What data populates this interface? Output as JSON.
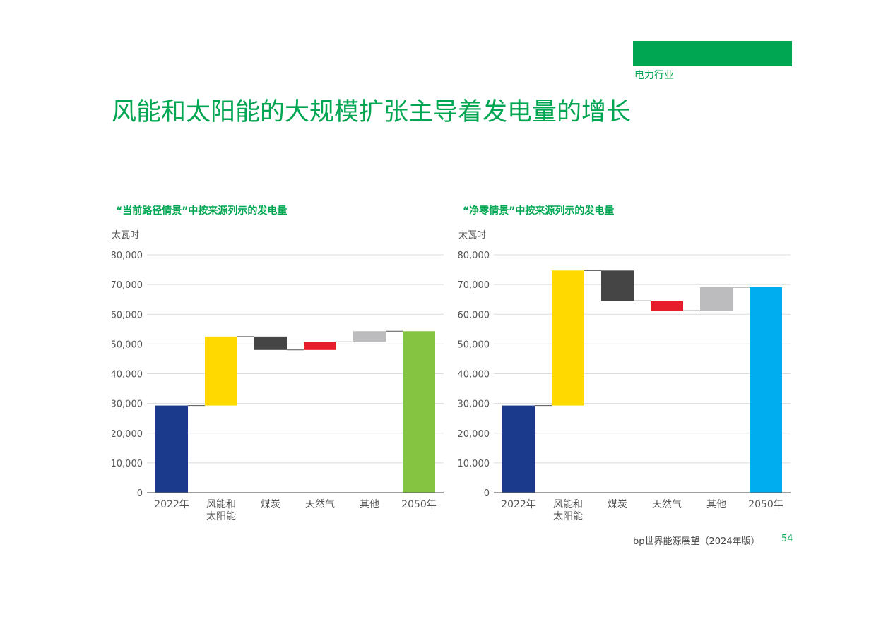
{
  "header": {
    "section_label": "电力行业",
    "title": "风能和太阳能的大规模扩张主导着发电量的增长",
    "accent_color": "#00a651"
  },
  "footer": {
    "source": "bp世界能源展望（2024年版）",
    "page_number": "54"
  },
  "chart_data": [
    {
      "type": "bar",
      "subtype": "waterfall",
      "title": "“当前路径情景”中按来源列示的发电量",
      "ylabel": "太瓦时",
      "ylim": [
        0,
        80000
      ],
      "yticks": [
        "0",
        "10,000",
        "20,000",
        "30,000",
        "40,000",
        "50,000",
        "60,000",
        "70,000",
        "80,000"
      ],
      "categories": [
        [
          "2022年"
        ],
        [
          "风能和",
          "太阳能"
        ],
        [
          "煤炭"
        ],
        [
          "天然气"
        ],
        [
          "其他"
        ],
        [
          "2050年"
        ]
      ],
      "bars": [
        {
          "start": 0,
          "end": 29300,
          "color": "#1b3a8c"
        },
        {
          "start": 29300,
          "end": 52500,
          "color": "#ffd900"
        },
        {
          "start": 52500,
          "end": 48000,
          "color": "#454545"
        },
        {
          "start": 48000,
          "end": 50700,
          "color": "#e61e2b"
        },
        {
          "start": 50700,
          "end": 54300,
          "color": "#bcbcbe"
        },
        {
          "start": 0,
          "end": 54300,
          "color": "#84c441"
        }
      ],
      "grid": true
    },
    {
      "type": "bar",
      "subtype": "waterfall",
      "title": "“净零情景”中按来源列示的发电量",
      "ylabel": "太瓦时",
      "ylim": [
        0,
        80000
      ],
      "yticks": [
        "0",
        "10,000",
        "20,000",
        "30,000",
        "40,000",
        "50,000",
        "60,000",
        "70,000",
        "80,000"
      ],
      "categories": [
        [
          "2022年"
        ],
        [
          "风能和",
          "太阳能"
        ],
        [
          "煤炭"
        ],
        [
          "天然气"
        ],
        [
          "其他"
        ],
        [
          "2050年"
        ]
      ],
      "bars": [
        {
          "start": 0,
          "end": 29300,
          "color": "#1b3a8c"
        },
        {
          "start": 29300,
          "end": 74700,
          "color": "#ffd900"
        },
        {
          "start": 74700,
          "end": 64500,
          "color": "#454545"
        },
        {
          "start": 64500,
          "end": 61200,
          "color": "#e61e2b"
        },
        {
          "start": 61200,
          "end": 69100,
          "color": "#bcbcbe"
        },
        {
          "start": 0,
          "end": 69100,
          "color": "#00aeef"
        }
      ],
      "grid": true
    }
  ]
}
